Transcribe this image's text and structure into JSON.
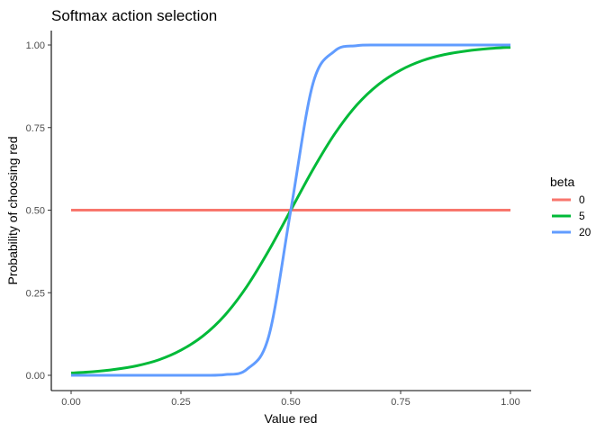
{
  "chart_data": {
    "type": "line",
    "title": "Softmax action selection",
    "xlabel": "Value red",
    "ylabel": "Probability of choosing red",
    "xlim": [
      0,
      1
    ],
    "ylim": [
      0,
      1
    ],
    "x_ticks": [
      "0.00",
      "0.25",
      "0.50",
      "0.75",
      "1.00"
    ],
    "y_ticks": [
      "0.00",
      "0.25",
      "0.50",
      "0.75",
      "1.00"
    ],
    "grid": false,
    "legend": {
      "title": "beta",
      "placement": "right"
    },
    "x": [
      0.0,
      0.05,
      0.1,
      0.15,
      0.2,
      0.25,
      0.3,
      0.35,
      0.4,
      0.45,
      0.5,
      0.55,
      0.6,
      0.65,
      0.7,
      0.75,
      0.8,
      0.85,
      0.9,
      0.95,
      1.0
    ],
    "series": [
      {
        "name": "0",
        "color": "#F8766D",
        "values": [
          0.5,
          0.5,
          0.5,
          0.5,
          0.5,
          0.5,
          0.5,
          0.5,
          0.5,
          0.5,
          0.5,
          0.5,
          0.5,
          0.5,
          0.5,
          0.5,
          0.5,
          0.5,
          0.5,
          0.5,
          0.5
        ]
      },
      {
        "name": "5",
        "color": "#00BA38",
        "values": [
          0.007,
          0.011,
          0.018,
          0.029,
          0.047,
          0.076,
          0.119,
          0.182,
          0.269,
          0.378,
          0.5,
          0.622,
          0.731,
          0.818,
          0.881,
          0.924,
          0.953,
          0.971,
          0.982,
          0.989,
          0.993
        ]
      },
      {
        "name": "20",
        "color": "#619CFF",
        "values": [
          0.0,
          0.0,
          0.0,
          0.0,
          0.0,
          0.0,
          0.0,
          0.002,
          0.018,
          0.119,
          0.5,
          0.881,
          0.982,
          0.998,
          1.0,
          1.0,
          1.0,
          1.0,
          1.0,
          1.0,
          1.0
        ]
      }
    ]
  }
}
